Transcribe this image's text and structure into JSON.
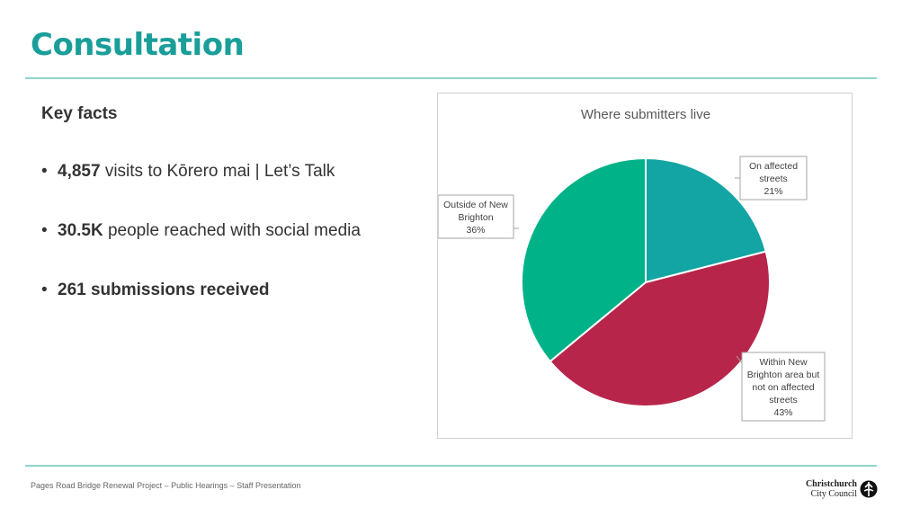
{
  "title": "Consultation",
  "key_facts": {
    "heading": "Key facts",
    "bullets": [
      {
        "bold": "4,857",
        "text": " visits to Kōrero mai | Let’s Talk"
      },
      {
        "bold": "30.5K",
        "text": " people reached with social media"
      },
      {
        "bold": "261 submissions received",
        "text": ""
      }
    ]
  },
  "chart_data": {
    "type": "pie",
    "title": "Where submitters live",
    "slices": [
      {
        "label_lines": [
          "On affected",
          "streets"
        ],
        "label": "On affected streets",
        "value": 21,
        "value_label": "21%",
        "color": "#13a5a3"
      },
      {
        "label_lines": [
          "Within New",
          "Brighton area but",
          "not on affected",
          "streets"
        ],
        "label": "Within New Brighton area but not on affected streets",
        "value": 43,
        "value_label": "43%",
        "color": "#b8254b"
      },
      {
        "label_lines": [
          "Outside of New",
          "Brighton"
        ],
        "label": "Outside of New Brighton",
        "value": 36,
        "value_label": "36%",
        "color": "#00b287"
      }
    ]
  },
  "footer": {
    "text": "Pages Road Bridge Renewal Project – Public Hearings – Staff Presentation",
    "logo_line1": "Christchurch",
    "logo_line2": "City Council"
  }
}
